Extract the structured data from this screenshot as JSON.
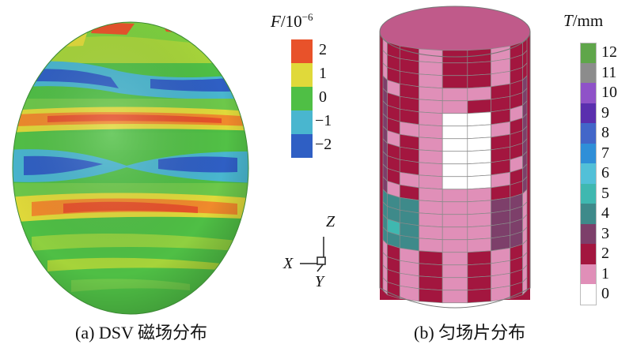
{
  "panel_a": {
    "caption": "(a) DSV 磁场分布",
    "legend": {
      "title_symbol": "F",
      "title_unit": "/10",
      "title_exp": "−6",
      "ticks": [
        "2",
        "1",
        "0",
        "−1",
        "−2"
      ],
      "colors": [
        "#e8522a",
        "#e0d93a",
        "#4fbf45",
        "#49b6cf",
        "#2f5fc4"
      ]
    }
  },
  "axes": {
    "z": "Z",
    "x": "X",
    "y": "Y"
  },
  "panel_b": {
    "caption": "(b) 匀场片分布",
    "legend": {
      "title_symbol": "T",
      "title_unit": "/mm",
      "ticks": [
        "12",
        "11",
        "10",
        "9",
        "8",
        "7",
        "6",
        "5",
        "4",
        "3",
        "2",
        "1",
        "0"
      ],
      "colors": [
        "#5fa64a",
        "#8c8c8c",
        "#8f52c8",
        "#5a2fae",
        "#4266c9",
        "#2f8fd8",
        "#52c0d8",
        "#3fb8b0",
        "#3e8a8a",
        "#7d3f6a",
        "#a3163f",
        "#e08fb8",
        "#ffffff"
      ]
    }
  }
}
